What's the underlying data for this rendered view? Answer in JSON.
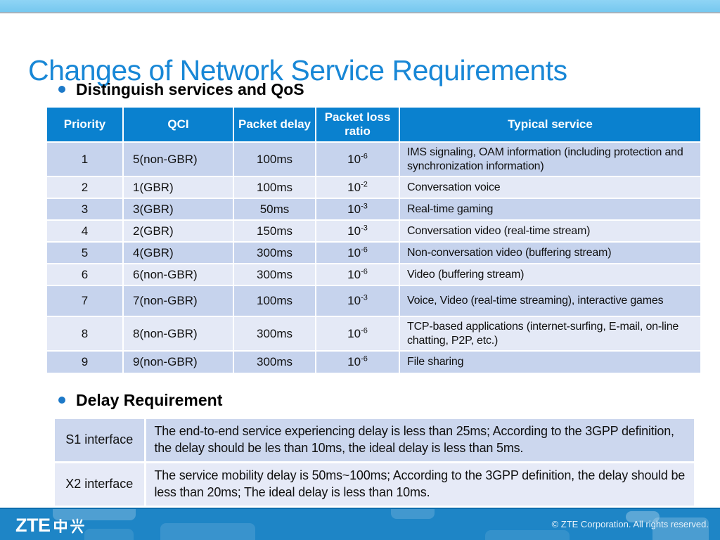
{
  "slide": {
    "title": "Changes of Network Service Requirements",
    "section1_heading": "Distinguish services and QoS",
    "section2_heading": "Delay Requirement"
  },
  "qos_table": {
    "headers": [
      "Priority",
      "QCI",
      "Packet delay",
      "Packet loss ratio",
      "Typical service"
    ],
    "rows": [
      {
        "priority": "1",
        "qci": "5(non-GBR)",
        "delay": "100ms",
        "loss_base": "10",
        "loss_exp": "-6",
        "service": "IMS signaling, OAM information (including protection and synchronization information)"
      },
      {
        "priority": "2",
        "qci": "1(GBR)",
        "delay": "100ms",
        "loss_base": "10",
        "loss_exp": "-2",
        "service": "Conversation voice"
      },
      {
        "priority": "3",
        "qci": "3(GBR)",
        "delay": "50ms",
        "loss_base": "10",
        "loss_exp": "-3",
        "service": "Real-time gaming"
      },
      {
        "priority": "4",
        "qci": "2(GBR)",
        "delay": "150ms",
        "loss_base": "10",
        "loss_exp": "-3",
        "service": "Conversation video (real-time stream)"
      },
      {
        "priority": "5",
        "qci": "4(GBR)",
        "delay": "300ms",
        "loss_base": "10",
        "loss_exp": "-6",
        "service": "Non-conversation video (buffering stream)"
      },
      {
        "priority": "6",
        "qci": "6(non-GBR)",
        "delay": "300ms",
        "loss_base": "10",
        "loss_exp": "-6",
        "service": "Video (buffering stream)"
      },
      {
        "priority": "7",
        "qci": "7(non-GBR)",
        "delay": "100ms",
        "loss_base": "10",
        "loss_exp": "-3",
        "service": "Voice, Video (real-time streaming), interactive games"
      },
      {
        "priority": "8",
        "qci": "8(non-GBR)",
        "delay": "300ms",
        "loss_base": "10",
        "loss_exp": "-6",
        "service": "TCP-based applications (internet-surfing, E-mail, on-line chatting, P2P, etc.)"
      },
      {
        "priority": "9",
        "qci": "9(non-GBR)",
        "delay": "300ms",
        "loss_base": "10",
        "loss_exp": "-6",
        "service": "File sharing"
      }
    ]
  },
  "delay_table": {
    "rows": [
      {
        "interface": "S1 interface",
        "description": "The end-to-end service experiencing delay is less than 25ms; According to the 3GPP definition, the delay should be les than 10ms, the ideal delay is less than 5ms."
      },
      {
        "interface": "X2 interface",
        "description": "The service mobility delay is 50ms~100ms; According to the 3GPP definition, the delay should be less than 20ms; The ideal delay is less than 10ms."
      }
    ]
  },
  "footer": {
    "logo_zte": "ZTE",
    "logo_hanzi": "中兴",
    "copyright": "© ZTE Corporation. All rights reserved."
  },
  "colors": {
    "topbar": "#7ecdf2",
    "title_blue": "#1887d6",
    "bullet_blue": "#1d79c8",
    "table_header_blue": "#0a81cf",
    "row_dark": "#c6d3ed",
    "row_light": "#e4e9f6",
    "footer_blue": "#1e85c6"
  }
}
